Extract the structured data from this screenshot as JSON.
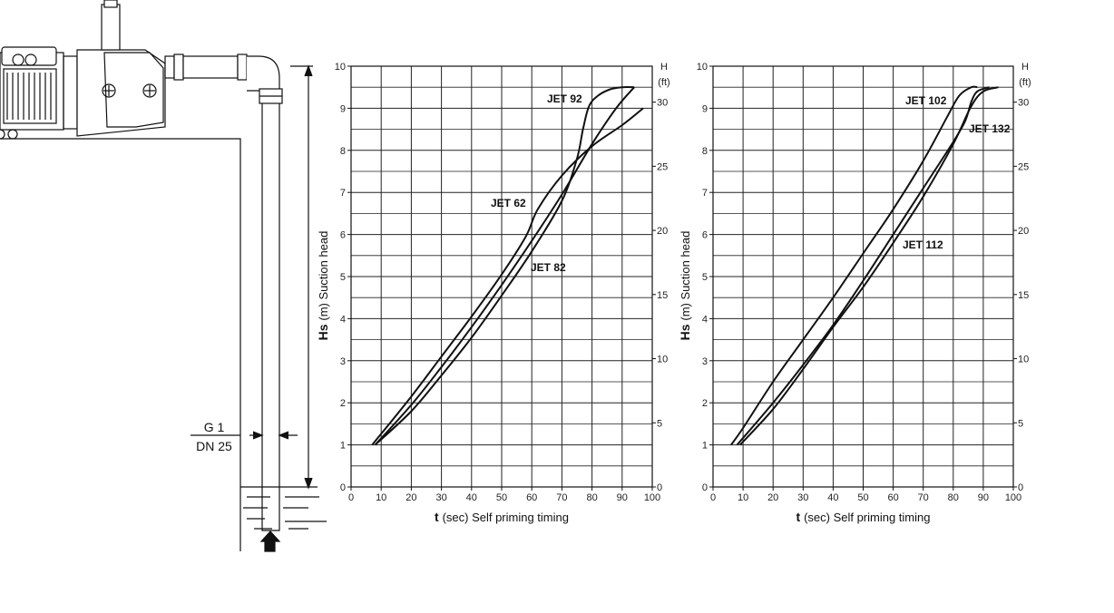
{
  "diagram": {
    "pipe_size_1": "G 1",
    "pipe_size_2": "DN 25"
  },
  "chart_data": [
    {
      "type": "line",
      "xlabel_bold": "t",
      "xlabel_rest": "(sec) Self priming timing",
      "ylabel_bold": "Hs",
      "ylabel_rest": "(m) Suction head",
      "y2label_1": "H",
      "y2label_2": "(ft)",
      "xlim": [
        0,
        100
      ],
      "ylim": [
        0,
        10
      ],
      "y2lim": [
        0,
        32.8
      ],
      "x_ticks": [
        "0",
        "10",
        "20",
        "30",
        "40",
        "50",
        "60",
        "70",
        "80",
        "90",
        "100"
      ],
      "y_ticks": [
        "0",
        "1",
        "2",
        "3",
        "4",
        "5",
        "6",
        "7",
        "8",
        "9",
        "10"
      ],
      "y2_ticks": [
        "0",
        "5",
        "10",
        "15",
        "20",
        "25",
        "30"
      ],
      "grid": true,
      "series": [
        {
          "name": "JET 62",
          "x": [
            7,
            20,
            30,
            40,
            50,
            58,
            62,
            70,
            80,
            90,
            97
          ],
          "y": [
            1,
            2.15,
            3.1,
            4.05,
            5.05,
            5.95,
            6.6,
            7.4,
            8.1,
            8.6,
            9.0
          ]
        },
        {
          "name": "JET 82",
          "x": [
            8,
            20,
            30,
            40,
            50,
            60,
            70,
            80,
            88,
            94
          ],
          "y": [
            1,
            1.95,
            2.85,
            3.8,
            4.8,
            5.85,
            6.95,
            8.15,
            9.0,
            9.5
          ]
        },
        {
          "name": "JET 92",
          "x": [
            8,
            20,
            30,
            40,
            50,
            60,
            70,
            75,
            77,
            79,
            82,
            86,
            90,
            94
          ],
          "y": [
            1,
            1.8,
            2.65,
            3.55,
            4.55,
            5.6,
            6.8,
            7.8,
            8.5,
            9.05,
            9.3,
            9.45,
            9.5,
            9.5
          ]
        }
      ]
    },
    {
      "type": "line",
      "xlabel_bold": "t",
      "xlabel_rest": "(sec) Self priming timing",
      "ylabel_bold": "Hs",
      "ylabel_rest": "(m) Suction head",
      "y2label_1": "H",
      "y2label_2": "(ft)",
      "xlim": [
        0,
        100
      ],
      "ylim": [
        0,
        10
      ],
      "y2lim": [
        0,
        32.8
      ],
      "x_ticks": [
        "0",
        "10",
        "20",
        "30",
        "40",
        "50",
        "60",
        "70",
        "80",
        "90",
        "100"
      ],
      "y_ticks": [
        "0",
        "1",
        "2",
        "3",
        "4",
        "5",
        "6",
        "7",
        "8",
        "9",
        "10"
      ],
      "y2_ticks": [
        "0",
        "5",
        "10",
        "15",
        "20",
        "25",
        "30"
      ],
      "grid": true,
      "series": [
        {
          "name": "JET 102",
          "x": [
            6,
            10,
            20,
            30,
            40,
            50,
            60,
            70,
            78,
            82,
            86,
            88
          ],
          "y": [
            1,
            1.4,
            2.5,
            3.5,
            4.5,
            5.55,
            6.6,
            7.75,
            8.8,
            9.3,
            9.5,
            9.5
          ]
        },
        {
          "name": "JET 112",
          "x": [
            9,
            20,
            30,
            40,
            50,
            60,
            70,
            80,
            86,
            90,
            95
          ],
          "y": [
            1,
            1.85,
            2.8,
            3.8,
            4.75,
            5.8,
            6.9,
            8.15,
            9.05,
            9.4,
            9.5
          ]
        },
        {
          "name": "JET 132",
          "x": [
            8,
            20,
            30,
            40,
            50,
            60,
            70,
            80,
            84,
            86,
            88,
            92
          ],
          "y": [
            1,
            2.0,
            2.9,
            3.85,
            4.9,
            6.0,
            7.1,
            8.2,
            8.7,
            9.15,
            9.4,
            9.5
          ]
        }
      ]
    }
  ]
}
